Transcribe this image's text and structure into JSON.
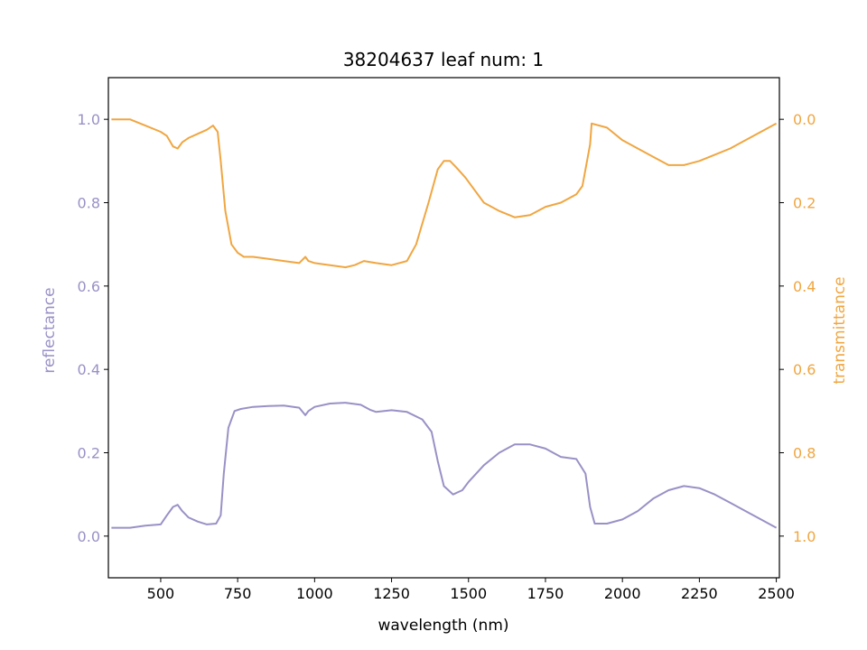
{
  "colors": {
    "reflectance": "#9991c6",
    "transmittance": "#f0a641",
    "axis": "#000000",
    "background": "#ffffff"
  },
  "chart_data": {
    "type": "line",
    "title": "38204637 leaf num: 1",
    "xlabel": "wavelength (nm)",
    "ylabel_left": "reflectance",
    "ylabel_right": "transmittance",
    "xlim": [
      330,
      2510
    ],
    "ylim_left": [
      -0.1,
      1.1
    ],
    "ylim_right": [
      1.1,
      -0.1
    ],
    "right_axis_inverted": true,
    "grid": false,
    "x_ticks": [
      "500",
      "750",
      "1000",
      "1250",
      "1500",
      "1750",
      "2000",
      "2250",
      "2500"
    ],
    "y_left_ticks": [
      "0.0",
      "0.2",
      "0.4",
      "0.6",
      "0.8",
      "1.0"
    ],
    "y_right_ticks": [
      "0.0",
      "0.2",
      "0.4",
      "0.6",
      "0.8",
      "1.0"
    ],
    "series": [
      {
        "name": "reflectance",
        "axis": "left",
        "x": [
          340,
          400,
          450,
          500,
          520,
          540,
          555,
          570,
          590,
          620,
          650,
          680,
          695,
          705,
          720,
          740,
          760,
          800,
          850,
          900,
          950,
          970,
          980,
          1000,
          1050,
          1100,
          1150,
          1180,
          1200,
          1250,
          1300,
          1350,
          1380,
          1400,
          1420,
          1450,
          1480,
          1500,
          1550,
          1600,
          1650,
          1700,
          1750,
          1800,
          1850,
          1880,
          1895,
          1910,
          1950,
          2000,
          2050,
          2100,
          2150,
          2200,
          2250,
          2300,
          2350,
          2400,
          2450,
          2500
        ],
        "y": [
          0.02,
          0.02,
          0.025,
          0.028,
          0.05,
          0.07,
          0.075,
          0.06,
          0.045,
          0.035,
          0.028,
          0.03,
          0.05,
          0.15,
          0.26,
          0.3,
          0.305,
          0.31,
          0.312,
          0.313,
          0.308,
          0.29,
          0.3,
          0.31,
          0.318,
          0.32,
          0.315,
          0.303,
          0.298,
          0.302,
          0.298,
          0.28,
          0.25,
          0.18,
          0.12,
          0.1,
          0.11,
          0.13,
          0.17,
          0.2,
          0.22,
          0.22,
          0.21,
          0.19,
          0.185,
          0.15,
          0.07,
          0.03,
          0.03,
          0.04,
          0.06,
          0.09,
          0.11,
          0.12,
          0.115,
          0.1,
          0.08,
          0.06,
          0.04,
          0.02
        ]
      },
      {
        "name": "transmittance",
        "axis": "right",
        "x": [
          340,
          400,
          450,
          500,
          520,
          540,
          555,
          570,
          590,
          620,
          650,
          670,
          685,
          695,
          710,
          730,
          750,
          770,
          800,
          850,
          900,
          950,
          970,
          980,
          1000,
          1050,
          1100,
          1130,
          1160,
          1200,
          1250,
          1300,
          1330,
          1370,
          1400,
          1420,
          1440,
          1460,
          1490,
          1550,
          1600,
          1650,
          1700,
          1750,
          1800,
          1850,
          1870,
          1880,
          1895,
          1900,
          1950,
          2000,
          2050,
          2100,
          2150,
          2200,
          2250,
          2300,
          2350,
          2400,
          2450,
          2500
        ],
        "y": [
          0.0,
          0.0,
          0.015,
          0.03,
          0.04,
          0.065,
          0.07,
          0.055,
          0.045,
          0.035,
          0.025,
          0.015,
          0.03,
          0.1,
          0.22,
          0.3,
          0.32,
          0.33,
          0.33,
          0.335,
          0.34,
          0.345,
          0.33,
          0.34,
          0.345,
          0.35,
          0.355,
          0.35,
          0.34,
          0.345,
          0.35,
          0.34,
          0.3,
          0.2,
          0.12,
          0.1,
          0.1,
          0.115,
          0.14,
          0.2,
          0.22,
          0.235,
          0.23,
          0.21,
          0.2,
          0.18,
          0.16,
          0.12,
          0.06,
          0.01,
          0.02,
          0.05,
          0.07,
          0.09,
          0.11,
          0.11,
          0.1,
          0.085,
          0.07,
          0.05,
          0.03,
          0.01
        ]
      }
    ]
  }
}
